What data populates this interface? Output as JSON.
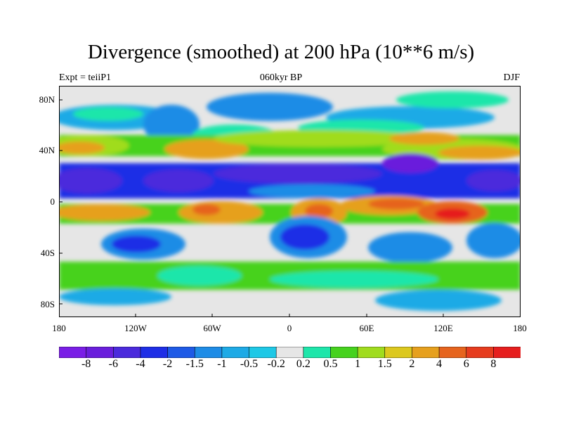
{
  "title": "Divergence (smoothed) at 200 hPa (10**6 m/s)",
  "expt_label": "Expt = teiiP1",
  "period_label": "060kyr BP",
  "season_label": "DJF",
  "lat_labels": [
    "80N",
    "40N",
    "0",
    "40S",
    "80S"
  ],
  "lon_labels": [
    "180",
    "120W",
    "60W",
    "0",
    "60E",
    "120E",
    "180"
  ],
  "colorbar": {
    "labels": [
      "-8",
      "-6",
      "-4",
      "-2",
      "-1.5",
      "-1",
      "-0.5",
      "-0.2",
      "0.2",
      "0.5",
      "1",
      "1.5",
      "2",
      "4",
      "6",
      "8"
    ],
    "colors": [
      "#7a1ee6",
      "#6a1edc",
      "#4b2adc",
      "#1e2ee6",
      "#1e5ae6",
      "#1e8ce6",
      "#1eaae6",
      "#1ec8e6",
      "#e6e6e6",
      "#1ee6aa",
      "#46d21e",
      "#a0dc1e",
      "#dcc81e",
      "#e6a01e",
      "#e6641e",
      "#e63c1e",
      "#e61e1e"
    ]
  }
}
